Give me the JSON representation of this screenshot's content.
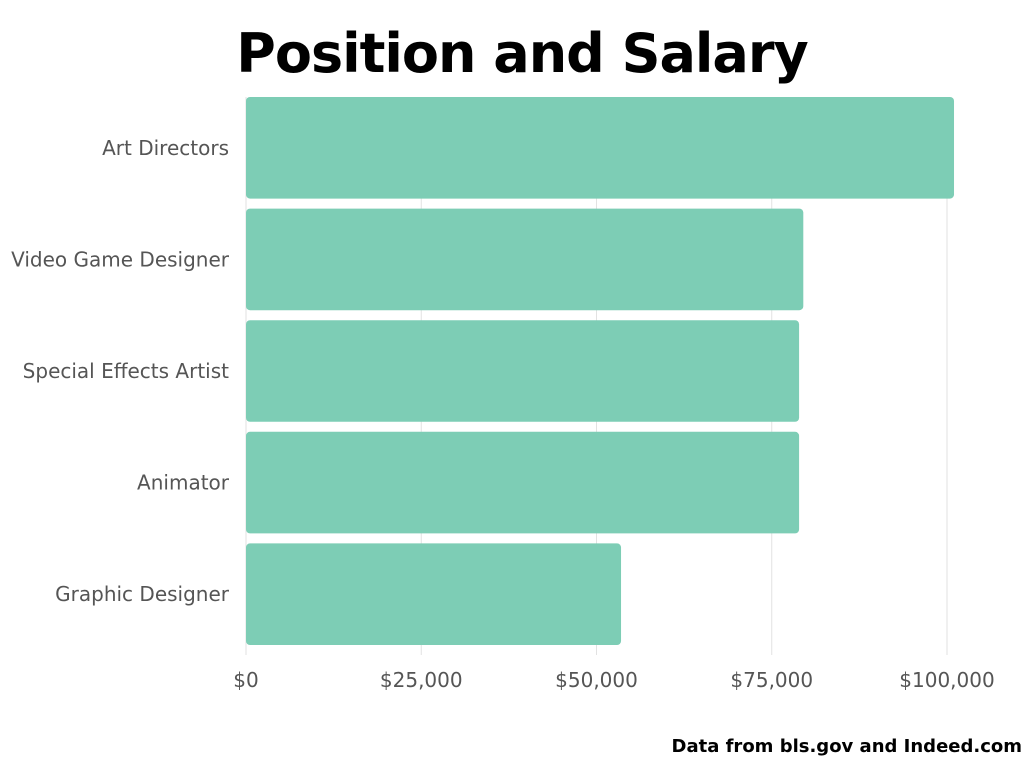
{
  "chart_data": {
    "type": "bar",
    "orientation": "horizontal",
    "title": "Position and Salary",
    "categories": [
      "Art Directors",
      "Video Game Designer",
      "Special Effects Artist",
      "Animator",
      "Graphic Designer"
    ],
    "values": [
      101000,
      79500,
      78900,
      78900,
      53500
    ],
    "xlim": [
      0,
      100000
    ],
    "x_ticks": [
      0,
      25000,
      50000,
      75000,
      100000
    ],
    "x_tick_labels": [
      "$0",
      "$25,000",
      "$50,000",
      "$75,000",
      "$100,000"
    ],
    "xlabel": "",
    "ylabel": "",
    "grid": "vertical",
    "bar_color": "#7dcdb5",
    "source_note": "Data from bls.gov and Indeed.com"
  }
}
